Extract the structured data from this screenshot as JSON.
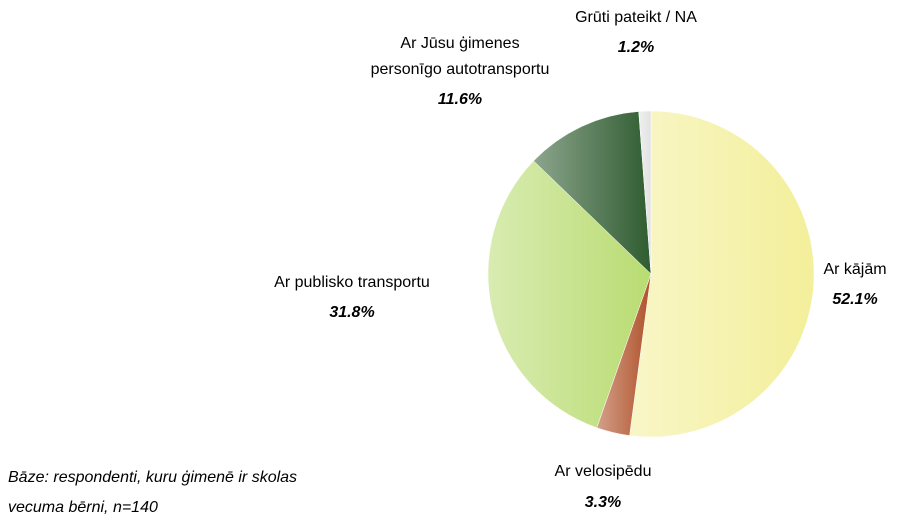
{
  "chart_data": {
    "type": "pie",
    "categories": [
      "Ar kājām",
      "Ar velosipēdu",
      "Ar publisko transportu",
      "Ar Jūsu ģimenes\npersonīgo autotransportu",
      "Grūti pateikt / NA"
    ],
    "values": [
      52.1,
      3.3,
      31.8,
      11.6,
      1.2
    ],
    "value_labels": [
      "52.1%",
      "3.3%",
      "31.8%",
      "11.6%",
      "1.2%"
    ],
    "colors": [
      "#f3ef9a",
      "#b0522a",
      "#b9dc72",
      "#2f5c30",
      "#e2e2e2"
    ],
    "note": [
      "Bāze: respondenti, kuru ģimenē ir skolas",
      "vecuma bērni, n=140"
    ]
  }
}
